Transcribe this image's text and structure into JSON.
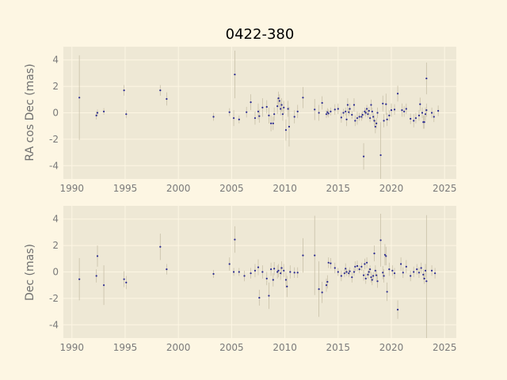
{
  "colors": {
    "figure_bg": "#fdf6e3",
    "axes_bg": "#eee8d5",
    "grid": "#fdf6e3",
    "point": "#2a2a90",
    "errorbar": "#c8c0a8",
    "tick_text": "#7a7a7a"
  },
  "chart_data": [
    {
      "type": "scatter",
      "title": "0422-380",
      "ylabel": "RA cos Dec (mas)",
      "xlabel": "",
      "xlim": [
        1989.2,
        2026.1
      ],
      "ylim": [
        -5,
        5
      ],
      "xticks": [
        1990,
        1995,
        2000,
        2005,
        2010,
        2015,
        2020,
        2025
      ],
      "yticks": [
        -4,
        -2,
        0,
        2,
        4
      ],
      "grid": true,
      "points": [
        {
          "x": 1990.7,
          "y": 1.15,
          "err": 3.2
        },
        {
          "x": 1992.3,
          "y": -0.2,
          "err": 0.3
        },
        {
          "x": 1992.4,
          "y": 0.0,
          "err": 0.25
        },
        {
          "x": 1993.0,
          "y": 0.1,
          "err": 0.25
        },
        {
          "x": 1994.9,
          "y": 1.7,
          "err": 0.4
        },
        {
          "x": 1995.1,
          "y": -0.1,
          "err": 0.3
        },
        {
          "x": 1998.3,
          "y": 1.7,
          "err": 0.4
        },
        {
          "x": 1998.9,
          "y": 1.05,
          "err": 0.5
        },
        {
          "x": 2003.3,
          "y": -0.3,
          "err": 0.3
        },
        {
          "x": 2004.8,
          "y": 0.05,
          "err": 0.3
        },
        {
          "x": 2005.2,
          "y": -0.4,
          "err": 0.6
        },
        {
          "x": 2005.3,
          "y": 2.9,
          "err": 1.8
        },
        {
          "x": 2005.7,
          "y": -0.5,
          "err": 0.3
        },
        {
          "x": 2006.4,
          "y": 0.05,
          "err": 0.4
        },
        {
          "x": 2006.8,
          "y": 0.8,
          "err": 0.6
        },
        {
          "x": 2007.2,
          "y": -0.4,
          "err": 0.5
        },
        {
          "x": 2007.5,
          "y": 0.1,
          "err": 0.6
        },
        {
          "x": 2007.6,
          "y": -0.25,
          "err": 0.5
        },
        {
          "x": 2007.9,
          "y": 0.4,
          "err": 0.7
        },
        {
          "x": 2008.3,
          "y": 0.45,
          "err": 0.5
        },
        {
          "x": 2008.5,
          "y": -0.2,
          "err": 0.6
        },
        {
          "x": 2008.7,
          "y": -0.8,
          "err": 0.6
        },
        {
          "x": 2008.9,
          "y": -0.8,
          "err": 0.5
        },
        {
          "x": 2009.0,
          "y": -0.1,
          "err": 0.5
        },
        {
          "x": 2009.3,
          "y": 0.5,
          "err": 0.6
        },
        {
          "x": 2009.4,
          "y": 1.1,
          "err": 0.5
        },
        {
          "x": 2009.5,
          "y": 0.9,
          "err": 0.5
        },
        {
          "x": 2009.6,
          "y": 0.3,
          "err": 0.5
        },
        {
          "x": 2009.7,
          "y": 0.6,
          "err": 0.5
        },
        {
          "x": 2009.8,
          "y": -0.1,
          "err": 0.5
        },
        {
          "x": 2009.9,
          "y": 0.4,
          "err": 0.5
        },
        {
          "x": 2010.1,
          "y": -1.3,
          "err": 0.8
        },
        {
          "x": 2010.3,
          "y": 0.3,
          "err": 0.6
        },
        {
          "x": 2010.4,
          "y": -1.05,
          "err": 1.5
        },
        {
          "x": 2010.9,
          "y": -0.3,
          "err": 0.5
        },
        {
          "x": 2011.2,
          "y": 0.1,
          "err": 0.5
        },
        {
          "x": 2011.7,
          "y": 1.15,
          "err": 0.8
        },
        {
          "x": 2012.8,
          "y": 0.25,
          "err": 0.8
        },
        {
          "x": 2013.2,
          "y": 0.0,
          "err": 0.6
        },
        {
          "x": 2013.5,
          "y": 0.75,
          "err": 0.5
        },
        {
          "x": 2013.9,
          "y": -0.1,
          "err": 0.3
        },
        {
          "x": 2014.0,
          "y": 0.05,
          "err": 0.3
        },
        {
          "x": 2014.1,
          "y": -0.05,
          "err": 0.3
        },
        {
          "x": 2014.3,
          "y": 0.1,
          "err": 0.3
        },
        {
          "x": 2014.7,
          "y": 0.25,
          "err": 0.4
        },
        {
          "x": 2015.0,
          "y": 0.3,
          "err": 0.4
        },
        {
          "x": 2015.3,
          "y": -0.35,
          "err": 0.4
        },
        {
          "x": 2015.5,
          "y": 0.0,
          "err": 0.3
        },
        {
          "x": 2015.7,
          "y": 0.1,
          "err": 0.3
        },
        {
          "x": 2015.8,
          "y": -0.5,
          "err": 0.5
        },
        {
          "x": 2015.9,
          "y": 0.6,
          "err": 0.5
        },
        {
          "x": 2016.0,
          "y": 0.05,
          "err": 0.3
        },
        {
          "x": 2016.1,
          "y": 0.3,
          "err": 0.4
        },
        {
          "x": 2016.3,
          "y": -0.15,
          "err": 0.3
        },
        {
          "x": 2016.5,
          "y": 0.6,
          "err": 0.5
        },
        {
          "x": 2016.6,
          "y": -0.6,
          "err": 0.4
        },
        {
          "x": 2016.8,
          "y": -0.4,
          "err": 0.5
        },
        {
          "x": 2017.0,
          "y": -0.3,
          "err": 0.3
        },
        {
          "x": 2017.2,
          "y": -0.3,
          "err": 0.3
        },
        {
          "x": 2017.3,
          "y": -0.15,
          "err": 0.3
        },
        {
          "x": 2017.4,
          "y": -3.3,
          "err": 1.0
        },
        {
          "x": 2017.5,
          "y": 0.1,
          "err": 0.3
        },
        {
          "x": 2017.6,
          "y": 0.0,
          "err": 0.3
        },
        {
          "x": 2017.7,
          "y": 0.3,
          "err": 0.3
        },
        {
          "x": 2017.8,
          "y": -0.1,
          "err": 0.3
        },
        {
          "x": 2017.9,
          "y": 0.15,
          "err": 0.3
        },
        {
          "x": 2018.0,
          "y": -0.4,
          "err": 0.3
        },
        {
          "x": 2018.1,
          "y": 0.6,
          "err": 0.4
        },
        {
          "x": 2018.2,
          "y": 0.1,
          "err": 0.3
        },
        {
          "x": 2018.3,
          "y": -0.3,
          "err": 0.3
        },
        {
          "x": 2018.4,
          "y": -0.6,
          "err": 0.4
        },
        {
          "x": 2018.5,
          "y": -1.05,
          "err": 0.5
        },
        {
          "x": 2018.6,
          "y": -0.8,
          "err": 0.4
        },
        {
          "x": 2018.7,
          "y": 0.0,
          "err": 0.4
        },
        {
          "x": 2019.0,
          "y": -3.2,
          "err": 2.5
        },
        {
          "x": 2019.2,
          "y": 0.7,
          "err": 0.6
        },
        {
          "x": 2019.3,
          "y": -0.6,
          "err": 0.5
        },
        {
          "x": 2019.5,
          "y": 0.65,
          "err": 0.8
        },
        {
          "x": 2019.6,
          "y": -0.5,
          "err": 0.5
        },
        {
          "x": 2019.8,
          "y": -0.2,
          "err": 0.4
        },
        {
          "x": 2020.0,
          "y": 0.2,
          "err": 0.5
        },
        {
          "x": 2020.3,
          "y": 0.25,
          "err": 0.4
        },
        {
          "x": 2020.6,
          "y": 1.45,
          "err": 0.6
        },
        {
          "x": 2021.0,
          "y": 0.2,
          "err": 0.5
        },
        {
          "x": 2021.2,
          "y": 0.1,
          "err": 0.4
        },
        {
          "x": 2021.4,
          "y": 0.3,
          "err": 0.4
        },
        {
          "x": 2021.8,
          "y": -0.45,
          "err": 0.4
        },
        {
          "x": 2022.1,
          "y": -0.6,
          "err": 0.5
        },
        {
          "x": 2022.3,
          "y": -0.4,
          "err": 0.4
        },
        {
          "x": 2022.6,
          "y": -0.2,
          "err": 0.4
        },
        {
          "x": 2022.7,
          "y": 0.65,
          "err": 0.5
        },
        {
          "x": 2022.9,
          "y": 0.0,
          "err": 0.4
        },
        {
          "x": 2023.0,
          "y": -0.7,
          "err": 0.5
        },
        {
          "x": 2023.1,
          "y": -0.7,
          "err": 0.5
        },
        {
          "x": 2023.2,
          "y": -0.1,
          "err": 0.5
        },
        {
          "x": 2023.3,
          "y": 0.2,
          "err": 0.5
        },
        {
          "x": 2023.3,
          "y": 2.6,
          "err": 1.2
        },
        {
          "x": 2023.8,
          "y": 0.0,
          "err": 0.4
        },
        {
          "x": 2024.0,
          "y": -0.3,
          "err": 0.4
        },
        {
          "x": 2024.4,
          "y": 0.15,
          "err": 0.4
        }
      ]
    },
    {
      "type": "scatter",
      "title": "",
      "ylabel": "Dec (mas)",
      "xlabel": "",
      "xlim": [
        1989.2,
        2026.1
      ],
      "ylim": [
        -5,
        5
      ],
      "xticks": [
        1990,
        1995,
        2000,
        2005,
        2010,
        2015,
        2020,
        2025
      ],
      "yticks": [
        -4,
        -2,
        0,
        2,
        4
      ],
      "grid": true,
      "points": [
        {
          "x": 1990.7,
          "y": -0.55,
          "err": 1.6
        },
        {
          "x": 1992.3,
          "y": -0.3,
          "err": 0.5
        },
        {
          "x": 1992.4,
          "y": 1.2,
          "err": 0.8
        },
        {
          "x": 1993.0,
          "y": -1.0,
          "err": 1.5
        },
        {
          "x": 1994.9,
          "y": -0.55,
          "err": 0.6
        },
        {
          "x": 1995.1,
          "y": -0.8,
          "err": 0.5
        },
        {
          "x": 1998.3,
          "y": 1.9,
          "err": 1.0
        },
        {
          "x": 1998.9,
          "y": 0.2,
          "err": 0.4
        },
        {
          "x": 2003.3,
          "y": -0.15,
          "err": 0.3
        },
        {
          "x": 2004.8,
          "y": 0.6,
          "err": 0.5
        },
        {
          "x": 2005.2,
          "y": 0.0,
          "err": 0.3
        },
        {
          "x": 2005.3,
          "y": 2.45,
          "err": 1.0
        },
        {
          "x": 2005.7,
          "y": 0.0,
          "err": 0.3
        },
        {
          "x": 2006.2,
          "y": -0.3,
          "err": 0.4
        },
        {
          "x": 2006.8,
          "y": -0.1,
          "err": 0.4
        },
        {
          "x": 2007.2,
          "y": 0.1,
          "err": 0.5
        },
        {
          "x": 2007.5,
          "y": 0.35,
          "err": 0.6
        },
        {
          "x": 2007.6,
          "y": -1.95,
          "err": 0.6
        },
        {
          "x": 2007.9,
          "y": 0.0,
          "err": 0.5
        },
        {
          "x": 2008.3,
          "y": -0.5,
          "err": 0.5
        },
        {
          "x": 2008.5,
          "y": -1.8,
          "err": 1.0
        },
        {
          "x": 2008.7,
          "y": 0.2,
          "err": 0.5
        },
        {
          "x": 2008.9,
          "y": -0.6,
          "err": 0.5
        },
        {
          "x": 2009.0,
          "y": 0.25,
          "err": 0.5
        },
        {
          "x": 2009.3,
          "y": 0.0,
          "err": 0.5
        },
        {
          "x": 2009.4,
          "y": 0.1,
          "err": 0.5
        },
        {
          "x": 2009.6,
          "y": -0.1,
          "err": 0.5
        },
        {
          "x": 2009.7,
          "y": 0.3,
          "err": 0.5
        },
        {
          "x": 2009.9,
          "y": 0.1,
          "err": 0.5
        },
        {
          "x": 2010.1,
          "y": -0.6,
          "err": 0.6
        },
        {
          "x": 2010.2,
          "y": -1.1,
          "err": 0.8
        },
        {
          "x": 2010.5,
          "y": 0.0,
          "err": 0.5
        },
        {
          "x": 2010.9,
          "y": -0.05,
          "err": 0.4
        },
        {
          "x": 2011.2,
          "y": -0.05,
          "err": 0.4
        },
        {
          "x": 2011.7,
          "y": 1.25,
          "err": 1.3
        },
        {
          "x": 2012.8,
          "y": 1.25,
          "err": 3.0
        },
        {
          "x": 2013.2,
          "y": -1.3,
          "err": 2.1
        },
        {
          "x": 2013.5,
          "y": -1.55,
          "err": 0.8
        },
        {
          "x": 2013.9,
          "y": -1.0,
          "err": 0.5
        },
        {
          "x": 2014.0,
          "y": -0.75,
          "err": 0.5
        },
        {
          "x": 2014.1,
          "y": 0.7,
          "err": 0.4
        },
        {
          "x": 2014.3,
          "y": 0.65,
          "err": 0.4
        },
        {
          "x": 2014.7,
          "y": 0.3,
          "err": 0.4
        },
        {
          "x": 2015.0,
          "y": 0.0,
          "err": 0.3
        },
        {
          "x": 2015.3,
          "y": -0.3,
          "err": 0.4
        },
        {
          "x": 2015.6,
          "y": -0.1,
          "err": 0.3
        },
        {
          "x": 2015.7,
          "y": 0.25,
          "err": 0.4
        },
        {
          "x": 2015.8,
          "y": 0.0,
          "err": 0.3
        },
        {
          "x": 2016.0,
          "y": -0.1,
          "err": 0.3
        },
        {
          "x": 2016.1,
          "y": 0.05,
          "err": 0.3
        },
        {
          "x": 2016.3,
          "y": -0.4,
          "err": 0.4
        },
        {
          "x": 2016.5,
          "y": 0.0,
          "err": 0.3
        },
        {
          "x": 2016.6,
          "y": 0.4,
          "err": 0.4
        },
        {
          "x": 2016.8,
          "y": 0.45,
          "err": 0.4
        },
        {
          "x": 2017.0,
          "y": 0.2,
          "err": 0.3
        },
        {
          "x": 2017.2,
          "y": 0.4,
          "err": 0.3
        },
        {
          "x": 2017.4,
          "y": -0.25,
          "err": 0.4
        },
        {
          "x": 2017.5,
          "y": 0.6,
          "err": 0.4
        },
        {
          "x": 2017.6,
          "y": -0.5,
          "err": 0.4
        },
        {
          "x": 2017.7,
          "y": 0.7,
          "err": 0.4
        },
        {
          "x": 2017.8,
          "y": -0.2,
          "err": 0.3
        },
        {
          "x": 2017.9,
          "y": 0.0,
          "err": 0.3
        },
        {
          "x": 2018.0,
          "y": 0.2,
          "err": 0.3
        },
        {
          "x": 2018.1,
          "y": -0.4,
          "err": 0.4
        },
        {
          "x": 2018.2,
          "y": -0.6,
          "err": 0.4
        },
        {
          "x": 2018.3,
          "y": -0.3,
          "err": 0.3
        },
        {
          "x": 2018.4,
          "y": 1.4,
          "err": 0.6
        },
        {
          "x": 2018.5,
          "y": 0.1,
          "err": 0.4
        },
        {
          "x": 2018.6,
          "y": -0.25,
          "err": 0.4
        },
        {
          "x": 2018.7,
          "y": -0.7,
          "err": 0.5
        },
        {
          "x": 2019.0,
          "y": 2.4,
          "err": 2.0
        },
        {
          "x": 2019.2,
          "y": -0.05,
          "err": 0.5
        },
        {
          "x": 2019.3,
          "y": -0.3,
          "err": 0.5
        },
        {
          "x": 2019.4,
          "y": 1.3,
          "err": 0.8
        },
        {
          "x": 2019.5,
          "y": 1.2,
          "err": 0.7
        },
        {
          "x": 2019.6,
          "y": -1.5,
          "err": 0.7
        },
        {
          "x": 2019.8,
          "y": 0.2,
          "err": 0.5
        },
        {
          "x": 2020.1,
          "y": 0.1,
          "err": 0.4
        },
        {
          "x": 2020.3,
          "y": -0.1,
          "err": 0.4
        },
        {
          "x": 2020.6,
          "y": -2.85,
          "err": 0.7
        },
        {
          "x": 2020.9,
          "y": 0.6,
          "err": 0.5
        },
        {
          "x": 2021.1,
          "y": -0.05,
          "err": 0.4
        },
        {
          "x": 2021.4,
          "y": 0.4,
          "err": 0.5
        },
        {
          "x": 2021.8,
          "y": -0.3,
          "err": 0.4
        },
        {
          "x": 2022.1,
          "y": 0.0,
          "err": 0.4
        },
        {
          "x": 2022.4,
          "y": 0.2,
          "err": 0.4
        },
        {
          "x": 2022.6,
          "y": -0.05,
          "err": 0.4
        },
        {
          "x": 2022.8,
          "y": 0.3,
          "err": 0.4
        },
        {
          "x": 2023.0,
          "y": -0.2,
          "err": 0.4
        },
        {
          "x": 2023.1,
          "y": -0.5,
          "err": 0.4
        },
        {
          "x": 2023.2,
          "y": 0.1,
          "err": 0.5
        },
        {
          "x": 2023.3,
          "y": -0.7,
          "err": 5.0
        },
        {
          "x": 2023.8,
          "y": 0.1,
          "err": 0.4
        },
        {
          "x": 2024.1,
          "y": -0.1,
          "err": 0.4
        }
      ]
    }
  ]
}
